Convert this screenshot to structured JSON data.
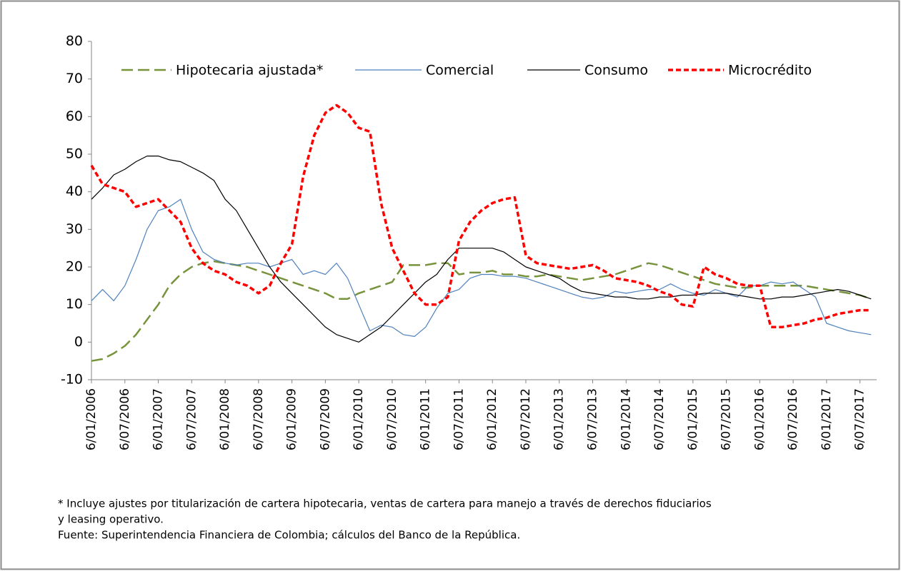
{
  "chart_data": {
    "type": "line",
    "x": [
      "6/01/2006",
      "6/03/2006",
      "6/05/2006",
      "6/07/2006",
      "6/09/2006",
      "6/11/2006",
      "6/01/2007",
      "6/03/2007",
      "6/05/2007",
      "6/07/2007",
      "6/09/2007",
      "6/11/2007",
      "6/01/2008",
      "6/03/2008",
      "6/05/2008",
      "6/07/2008",
      "6/09/2008",
      "6/11/2008",
      "6/01/2009",
      "6/03/2009",
      "6/05/2009",
      "6/07/2009",
      "6/09/2009",
      "6/11/2009",
      "6/01/2010",
      "6/03/2010",
      "6/05/2010",
      "6/07/2010",
      "6/09/2010",
      "6/11/2010",
      "6/01/2011",
      "6/03/2011",
      "6/05/2011",
      "6/07/2011",
      "6/09/2011",
      "6/11/2011",
      "6/01/2012",
      "6/03/2012",
      "6/05/2012",
      "6/07/2012",
      "6/09/2012",
      "6/11/2012",
      "6/01/2013",
      "6/03/2013",
      "6/05/2013",
      "6/07/2013",
      "6/09/2013",
      "6/11/2013",
      "6/01/2014",
      "6/03/2014",
      "6/05/2014",
      "6/07/2014",
      "6/09/2014",
      "6/11/2014",
      "6/01/2015",
      "6/03/2015",
      "6/05/2015",
      "6/07/2015",
      "6/09/2015",
      "6/11/2015",
      "6/01/2016",
      "6/03/2016",
      "6/05/2016",
      "6/07/2016",
      "6/09/2016",
      "6/11/2016",
      "6/01/2017",
      "6/03/2017",
      "6/05/2017",
      "6/07/2017",
      "6/09/2017"
    ],
    "series": [
      {
        "name": "Hipotecaria ajustada*",
        "color": "#77933c",
        "style": "dashed",
        "values": [
          -5,
          -4.5,
          -3,
          -1,
          2,
          6,
          10,
          15,
          18,
          20,
          21,
          21.5,
          21,
          20.5,
          20,
          19,
          18,
          17,
          16,
          15,
          14,
          13,
          11.5,
          11.5,
          13,
          14,
          15,
          16,
          20.5,
          20.5,
          20.5,
          21,
          21,
          18,
          18.5,
          18.5,
          19,
          18,
          18,
          17.5,
          17.5,
          18,
          17.5,
          17,
          16.5,
          17,
          17.5,
          18,
          19,
          20,
          21,
          20.5,
          19.5,
          18.5,
          17.5,
          16.5,
          15.5,
          15,
          14.5,
          14.5,
          15,
          15,
          15,
          15,
          15,
          14.5,
          14,
          13.5,
          13,
          12.5,
          11.5
        ]
      },
      {
        "name": "Comercial",
        "color": "#4f81bd",
        "style": "solid",
        "values": [
          11,
          14,
          11,
          15,
          22,
          30,
          35,
          36,
          38,
          30,
          24,
          22,
          21,
          20.5,
          21,
          21,
          20,
          21,
          22,
          18,
          19,
          18,
          21,
          17,
          10,
          3,
          4.5,
          4,
          2,
          1.5,
          4,
          9,
          13,
          14,
          17,
          18,
          18,
          17.5,
          17.5,
          17,
          16,
          15,
          14,
          13,
          12,
          11.5,
          12,
          13.5,
          13,
          13.5,
          14,
          14,
          15.5,
          14,
          13,
          12.5,
          14,
          13,
          12,
          15,
          15,
          16,
          15.5,
          16,
          14,
          12,
          5,
          4,
          3,
          2.5,
          2
        ]
      },
      {
        "name": "Consumo",
        "color": "#000000",
        "style": "solid",
        "values": [
          38,
          41,
          44.5,
          46,
          48,
          49.5,
          49.5,
          48.5,
          48,
          46.5,
          45,
          43,
          38,
          35,
          30,
          25,
          20,
          16,
          13,
          10,
          7,
          4,
          2,
          1,
          0,
          2,
          4,
          7,
          10,
          13,
          16,
          18,
          22,
          25,
          25,
          25,
          25,
          24,
          22,
          20,
          19,
          18,
          17,
          15,
          13.5,
          13,
          12.5,
          12,
          12,
          11.5,
          11.5,
          12,
          12,
          12.5,
          12.5,
          13,
          13,
          13,
          12.5,
          12,
          11.5,
          11.5,
          12,
          12,
          12.5,
          13,
          13.5,
          14,
          13.5,
          12.5,
          11.5
        ]
      },
      {
        "name": "Microcrédito",
        "color": "#ff0000",
        "style": "dotted",
        "values": [
          47,
          42,
          41,
          40,
          36,
          37,
          38,
          35,
          32,
          25,
          21,
          19,
          18,
          16,
          15,
          13,
          15,
          21,
          26,
          44,
          55,
          61,
          63,
          61,
          57,
          56,
          37,
          25,
          19,
          13,
          10,
          10,
          12,
          27,
          32,
          35,
          37,
          38,
          38.5,
          23,
          21,
          20.5,
          20,
          19.5,
          20,
          20.5,
          19,
          17,
          16.5,
          16,
          15,
          13.5,
          12.5,
          10,
          9.5,
          20,
          18,
          17,
          15.5,
          15,
          15,
          4,
          4,
          4.5,
          5,
          6,
          6.5,
          7.5,
          8,
          8.5,
          8.5
        ]
      }
    ],
    "xlim": [
      "6/01/2006",
      "6/10/2017"
    ],
    "xticks": [
      "6/01/2006",
      "6/07/2006",
      "6/01/2007",
      "6/07/2007",
      "6/01/2008",
      "6/07/2008",
      "6/01/2009",
      "6/07/2009",
      "6/01/2010",
      "6/07/2010",
      "6/01/2011",
      "6/07/2011",
      "6/01/2012",
      "6/07/2012",
      "6/01/2013",
      "6/07/2013",
      "6/01/2014",
      "6/07/2014",
      "6/01/2015",
      "6/07/2015",
      "6/01/2016",
      "6/07/2016",
      "6/01/2017",
      "6/07/2017"
    ],
    "ylim": [
      -10,
      80
    ],
    "yticks": [
      -10,
      0,
      10,
      20,
      30,
      40,
      50,
      60,
      70,
      80
    ],
    "legend": "top",
    "notes": [
      "* Incluye ajustes por titularización de cartera hipotecaria, ventas de cartera para manejo a través de derechos fiduciarios",
      "y leasing operativo.",
      "Fuente: Superintendencia Financiera de Colombia; cálculos del Banco de la República."
    ]
  }
}
